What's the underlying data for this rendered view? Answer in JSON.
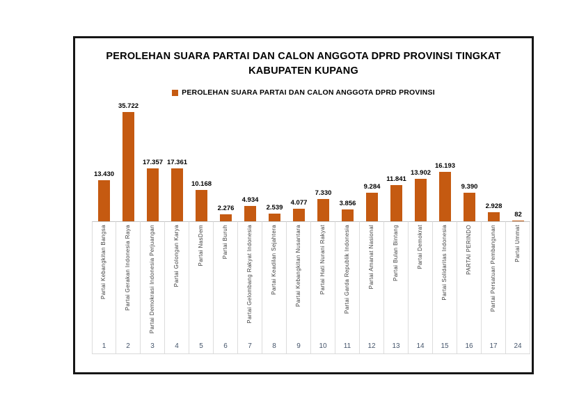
{
  "chart": {
    "title_line1": "PEROLEHAN SUARA PARTAI DAN CALON ANGGOTA DPRD PROVINSI TINGKAT",
    "title_line2": "KABUPATEN KUPANG",
    "legend_label": "PEROLEHAN SUARA PARTAI DAN CALON ANGGOTA DPRD PROVINSI",
    "bar_color": "#C55A11",
    "axis_line_color": "#c3c3c3",
    "separator_color": "#dcdcdc",
    "category_label_color": "#404040",
    "category_number_color": "#44546A"
  },
  "chart_data": {
    "type": "bar",
    "title": "PEROLEHAN SUARA PARTAI DAN CALON ANGGOTA DPRD PROVINSI TINGKAT KABUPATEN KUPANG",
    "legend": [
      "PEROLEHAN SUARA PARTAI DAN CALON ANGGOTA DPRD PROVINSI"
    ],
    "legend_position": "top",
    "grid": false,
    "bar_color": "#C55A11",
    "categories": [
      "Partai Kebangkitan Bangsa",
      "Partai Gerakan Indonesia Raya",
      "Partai Demokrasi Indonesia Perjuangan",
      "Partai Golongan Karya",
      "Partai NasDem",
      "Partai Buruh",
      "Partai Gelombang Rakyat Indonesia",
      "Partai Keadilan Sejahtera",
      "Partai Kebangkitan Nusantara",
      "Partai Hati Nurani Rakyat",
      "Partai Garda Republik Indonesia",
      "Partai Amanat Nasional",
      "Partai Bulan Bintang",
      "Partai Demokrat",
      "Partai Solidaritas Indonesia",
      "PARTAI PERINDO",
      "Partai Persatuan Pembangunan",
      "Partai Ummat"
    ],
    "category_numbers": [
      "1",
      "2",
      "3",
      "4",
      "5",
      "6",
      "7",
      "8",
      "9",
      "10",
      "11",
      "12",
      "13",
      "14",
      "15",
      "16",
      "17",
      "24"
    ],
    "values": [
      13430,
      35722,
      17357,
      17361,
      10168,
      2276,
      4934,
      2539,
      4077,
      7330,
      3856,
      9284,
      11841,
      13902,
      16193,
      9390,
      2928,
      82
    ],
    "value_labels": [
      "13.430",
      "35.722",
      "17.357",
      "17.361",
      "10.168",
      "2.276",
      "4.934",
      "2.539",
      "4.077",
      "7.330",
      "3.856",
      "9.284",
      "11.841",
      "13.902",
      "16.193",
      "9.390",
      "2.928",
      "82"
    ],
    "ylim": [
      0,
      35722
    ]
  }
}
